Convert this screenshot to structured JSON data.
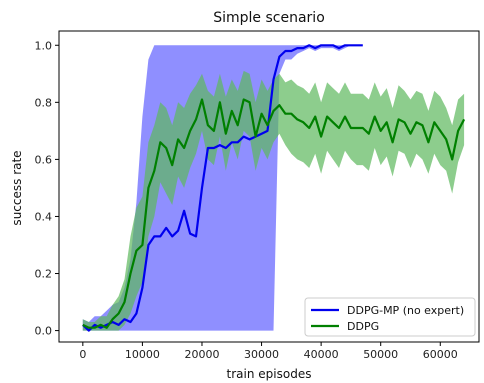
{
  "chart_data": {
    "type": "line",
    "title": "Simple scenario",
    "xlabel": "train episodes",
    "ylabel": "success rate",
    "xlim": [
      -4000,
      66500
    ],
    "ylim": [
      -0.04,
      1.05
    ],
    "xticks": [
      0,
      10000,
      20000,
      30000,
      40000,
      50000,
      60000
    ],
    "yticks": [
      0.0,
      0.2,
      0.4,
      0.6,
      0.8,
      1.0
    ],
    "xtick_labels": [
      "0",
      "10000",
      "20000",
      "30000",
      "40000",
      "50000",
      "60000"
    ],
    "ytick_labels": [
      "0.0",
      "0.2",
      "0.4",
      "0.6",
      "0.8",
      "1.0"
    ],
    "grid": false,
    "legend_position": "lower-right",
    "series": [
      {
        "name": "DDPG-MP (no expert)",
        "color": "#0000ee",
        "band_color": "#7b7bff",
        "x": [
          0,
          1000,
          2000,
          3000,
          4000,
          5000,
          6000,
          7000,
          8000,
          9000,
          10000,
          11000,
          12000,
          13000,
          14000,
          15000,
          16000,
          17000,
          18000,
          19000,
          20000,
          21000,
          22000,
          23000,
          24000,
          25000,
          26000,
          27000,
          28000,
          29000,
          30000,
          31000,
          32000,
          33000,
          34000,
          35000,
          36000,
          37000,
          38000,
          39000,
          40000,
          41000,
          42000,
          43000,
          44000,
          45000,
          46000,
          47000
        ],
        "y": [
          0.02,
          0.0,
          0.02,
          0.01,
          0.02,
          0.03,
          0.02,
          0.04,
          0.03,
          0.06,
          0.15,
          0.3,
          0.33,
          0.33,
          0.36,
          0.33,
          0.35,
          0.42,
          0.34,
          0.33,
          0.5,
          0.64,
          0.64,
          0.65,
          0.64,
          0.66,
          0.66,
          0.68,
          0.67,
          0.68,
          0.69,
          0.7,
          0.88,
          0.96,
          0.98,
          0.98,
          0.99,
          0.99,
          1.0,
          0.99,
          1.0,
          1.0,
          1.0,
          0.99,
          1.0,
          1.0,
          1.0,
          1.0
        ],
        "lower": [
          0.0,
          0.0,
          0.0,
          0.0,
          0.0,
          0.0,
          0.0,
          0.0,
          0.0,
          0.0,
          0.0,
          0.0,
          0.0,
          0.0,
          0.0,
          0.0,
          0.0,
          0.0,
          0.0,
          0.0,
          0.0,
          0.0,
          0.0,
          0.0,
          0.0,
          0.0,
          0.0,
          0.0,
          0.0,
          0.0,
          0.0,
          0.0,
          0.0,
          0.9,
          0.95,
          0.95,
          0.97,
          0.98,
          0.99,
          0.98,
          0.99,
          0.99,
          0.99,
          0.98,
          0.99,
          1.0,
          1.0,
          1.0
        ],
        "upper": [
          0.04,
          0.03,
          0.05,
          0.05,
          0.07,
          0.09,
          0.1,
          0.15,
          0.25,
          0.45,
          0.75,
          0.95,
          1.0,
          1.0,
          1.0,
          1.0,
          1.0,
          1.0,
          1.0,
          1.0,
          1.0,
          1.0,
          1.0,
          1.0,
          1.0,
          1.0,
          1.0,
          1.0,
          1.0,
          1.0,
          1.0,
          1.0,
          1.0,
          1.0,
          1.0,
          1.0,
          1.0,
          1.0,
          1.0,
          1.0,
          1.0,
          1.0,
          1.0,
          1.0,
          1.0,
          1.0,
          1.0,
          1.0
        ]
      },
      {
        "name": "DDPG",
        "color": "#008000",
        "band_color": "#5cb85c",
        "x": [
          0,
          1000,
          2000,
          3000,
          4000,
          5000,
          6000,
          7000,
          8000,
          9000,
          10000,
          11000,
          12000,
          13000,
          14000,
          15000,
          16000,
          17000,
          18000,
          19000,
          20000,
          21000,
          22000,
          23000,
          24000,
          25000,
          26000,
          27000,
          28000,
          29000,
          30000,
          31000,
          32000,
          33000,
          34000,
          35000,
          36000,
          37000,
          38000,
          39000,
          40000,
          41000,
          42000,
          43000,
          44000,
          45000,
          46000,
          47000,
          48000,
          49000,
          50000,
          51000,
          52000,
          53000,
          54000,
          55000,
          56000,
          57000,
          58000,
          59000,
          60000,
          61000,
          62000,
          63000,
          64000
        ],
        "y": [
          0.02,
          0.01,
          0.01,
          0.02,
          0.01,
          0.04,
          0.06,
          0.1,
          0.2,
          0.28,
          0.3,
          0.5,
          0.56,
          0.66,
          0.64,
          0.58,
          0.67,
          0.64,
          0.7,
          0.74,
          0.81,
          0.72,
          0.7,
          0.8,
          0.69,
          0.77,
          0.72,
          0.81,
          0.8,
          0.68,
          0.76,
          0.72,
          0.77,
          0.79,
          0.76,
          0.76,
          0.74,
          0.73,
          0.71,
          0.75,
          0.68,
          0.75,
          0.73,
          0.71,
          0.75,
          0.71,
          0.71,
          0.71,
          0.69,
          0.75,
          0.7,
          0.73,
          0.66,
          0.74,
          0.73,
          0.69,
          0.73,
          0.72,
          0.66,
          0.73,
          0.7,
          0.67,
          0.6,
          0.7,
          0.74
        ],
        "lower": [
          0.0,
          0.0,
          0.0,
          0.0,
          0.0,
          0.0,
          0.0,
          0.02,
          0.06,
          0.12,
          0.17,
          0.33,
          0.4,
          0.52,
          0.48,
          0.44,
          0.54,
          0.5,
          0.57,
          0.62,
          0.7,
          0.6,
          0.58,
          0.68,
          0.56,
          0.66,
          0.6,
          0.7,
          0.68,
          0.56,
          0.64,
          0.6,
          0.66,
          0.69,
          0.65,
          0.62,
          0.6,
          0.59,
          0.57,
          0.62,
          0.55,
          0.63,
          0.6,
          0.57,
          0.63,
          0.6,
          0.58,
          0.58,
          0.56,
          0.64,
          0.58,
          0.61,
          0.54,
          0.63,
          0.62,
          0.57,
          0.62,
          0.6,
          0.55,
          0.62,
          0.58,
          0.56,
          0.48,
          0.59,
          0.65
        ],
        "upper": [
          0.04,
          0.03,
          0.03,
          0.05,
          0.05,
          0.09,
          0.12,
          0.18,
          0.33,
          0.43,
          0.47,
          0.66,
          0.72,
          0.8,
          0.78,
          0.72,
          0.8,
          0.78,
          0.83,
          0.86,
          0.9,
          0.84,
          0.82,
          0.9,
          0.82,
          0.88,
          0.84,
          0.91,
          0.9,
          0.8,
          0.88,
          0.84,
          0.88,
          0.9,
          0.87,
          0.88,
          0.86,
          0.85,
          0.83,
          0.87,
          0.8,
          0.87,
          0.85,
          0.83,
          0.87,
          0.83,
          0.83,
          0.83,
          0.81,
          0.87,
          0.82,
          0.85,
          0.78,
          0.86,
          0.84,
          0.81,
          0.84,
          0.83,
          0.77,
          0.84,
          0.82,
          0.78,
          0.72,
          0.81,
          0.83
        ]
      }
    ]
  }
}
